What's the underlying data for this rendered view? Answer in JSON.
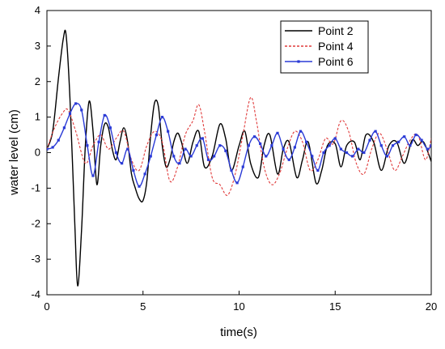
{
  "chart_data": {
    "type": "line",
    "title": "",
    "xlabel": "time(s)",
    "ylabel": "water level (cm)",
    "xlim": [
      0,
      20
    ],
    "ylim": [
      -4,
      4
    ],
    "xticks": [
      0,
      5,
      10,
      15,
      20
    ],
    "yticks": [
      -4,
      -3,
      -2,
      -1,
      0,
      1,
      2,
      3,
      4
    ],
    "grid": false,
    "legend_position": "top-right",
    "series": [
      {
        "name": "Point 2",
        "color": "#000000",
        "style": "solid",
        "markers": false,
        "x": [
          0,
          0.3,
          0.6,
          0.85,
          1.0,
          1.2,
          1.45,
          1.6,
          1.8,
          2.0,
          2.2,
          2.4,
          2.6,
          2.8,
          3.0,
          3.2,
          3.4,
          3.6,
          3.8,
          4.0,
          4.2,
          4.4,
          4.6,
          4.8,
          5.0,
          5.2,
          5.4,
          5.6,
          5.8,
          6.0,
          6.2,
          6.4,
          6.6,
          6.8,
          7.0,
          7.3,
          7.6,
          7.9,
          8.2,
          8.6,
          9.0,
          9.3,
          9.6,
          10.0,
          10.3,
          10.6,
          11.0,
          11.3,
          11.6,
          12.0,
          12.3,
          12.6,
          13.0,
          13.3,
          13.6,
          14.0,
          14.3,
          14.6,
          15.0,
          15.3,
          15.6,
          16.0,
          16.3,
          16.6,
          17.0,
          17.4,
          17.8,
          18.2,
          18.6,
          19.0,
          19.3,
          19.6,
          20.0
        ],
        "values": [
          0.1,
          0.6,
          2.1,
          3.2,
          3.3,
          1.5,
          -2.0,
          -3.75,
          -2.2,
          0.2,
          1.45,
          0.6,
          -0.9,
          0.2,
          0.8,
          0.7,
          0.1,
          -0.2,
          0.3,
          0.7,
          0.3,
          -0.6,
          -1.0,
          -1.3,
          -1.35,
          -0.8,
          0.5,
          1.4,
          1.3,
          0.2,
          -0.4,
          -0.2,
          0.3,
          0.55,
          0.3,
          -0.3,
          0.3,
          0.6,
          -0.4,
          -0.1,
          0.8,
          0.4,
          -0.5,
          0.2,
          0.6,
          -0.3,
          -0.7,
          0.2,
          0.5,
          -0.6,
          0.1,
          0.3,
          -0.7,
          -0.2,
          0.3,
          -0.85,
          -0.5,
          0.2,
          0.25,
          -0.4,
          0.2,
          0.3,
          -0.2,
          0.5,
          0.3,
          -0.5,
          0.2,
          0.3,
          -0.3,
          0.35,
          0.2,
          0.3,
          -0.25
        ]
      },
      {
        "name": "Point 4",
        "color": "#e03c3c",
        "style": "dashed",
        "markers": false,
        "x": [
          0,
          0.4,
          0.8,
          1.1,
          1.5,
          2.0,
          2.4,
          2.8,
          3.2,
          3.6,
          4.0,
          4.4,
          4.8,
          5.2,
          5.6,
          6.0,
          6.4,
          6.8,
          7.2,
          7.6,
          7.9,
          8.2,
          8.6,
          9.0,
          9.4,
          9.8,
          10.2,
          10.6,
          10.9,
          11.3,
          11.7,
          12.1,
          12.5,
          12.9,
          13.3,
          13.7,
          14.1,
          14.5,
          14.9,
          15.3,
          15.7,
          16.1,
          16.5,
          16.9,
          17.3,
          17.7,
          18.1,
          18.5,
          18.9,
          19.3,
          19.7,
          20.0
        ],
        "values": [
          0.1,
          0.7,
          1.1,
          1.2,
          0.6,
          -0.3,
          0.2,
          0.5,
          0.1,
          0.4,
          0.6,
          -0.2,
          -0.5,
          0.2,
          0.6,
          0.3,
          -0.8,
          -0.4,
          0.5,
          0.9,
          1.35,
          0.6,
          -0.7,
          -0.9,
          -1.2,
          -0.6,
          0.5,
          1.55,
          0.9,
          -0.4,
          -0.9,
          -0.6,
          0.1,
          0.6,
          0.3,
          -0.5,
          -0.2,
          0.4,
          0.25,
          0.9,
          0.6,
          -0.3,
          -0.6,
          0.1,
          0.55,
          0.1,
          -0.5,
          -0.1,
          0.35,
          0.5,
          -0.2,
          0.4
        ]
      },
      {
        "name": "Point 6",
        "color": "#2a3ad6",
        "style": "solid",
        "markers": true,
        "x": [
          0,
          0.3,
          0.6,
          0.9,
          1.2,
          1.5,
          1.8,
          2.1,
          2.4,
          2.7,
          3.0,
          3.3,
          3.6,
          3.9,
          4.2,
          4.5,
          4.8,
          5.1,
          5.4,
          5.7,
          6.0,
          6.3,
          6.6,
          6.9,
          7.2,
          7.5,
          7.8,
          8.1,
          8.4,
          8.7,
          9.0,
          9.3,
          9.6,
          9.9,
          10.2,
          10.5,
          10.8,
          11.1,
          11.4,
          11.7,
          12.0,
          12.3,
          12.6,
          12.9,
          13.2,
          13.5,
          13.8,
          14.1,
          14.4,
          14.7,
          15.0,
          15.3,
          15.6,
          15.9,
          16.2,
          16.5,
          16.8,
          17.1,
          17.4,
          17.7,
          18.0,
          18.3,
          18.6,
          18.9,
          19.2,
          19.5,
          19.8,
          20.0
        ],
        "values": [
          0.1,
          0.15,
          0.35,
          0.7,
          1.1,
          1.38,
          1.2,
          0.2,
          -0.65,
          0.3,
          1.05,
          0.7,
          0.0,
          -0.3,
          0.1,
          -0.5,
          -0.95,
          -0.6,
          -0.1,
          0.5,
          1.0,
          0.6,
          -0.1,
          -0.3,
          0.1,
          -0.1,
          0.2,
          0.4,
          -0.2,
          -0.1,
          0.2,
          0.05,
          -0.5,
          -0.85,
          -0.4,
          0.2,
          0.45,
          0.25,
          -0.1,
          0.2,
          0.55,
          0.1,
          -0.2,
          0.15,
          0.6,
          0.3,
          -0.1,
          -0.5,
          0.0,
          0.2,
          0.4,
          0.1,
          0.0,
          -0.1,
          0.1,
          0.0,
          0.35,
          0.6,
          0.2,
          -0.1,
          0.2,
          0.3,
          0.45,
          0.2,
          0.5,
          0.35,
          0.1,
          0.2
        ]
      }
    ]
  }
}
